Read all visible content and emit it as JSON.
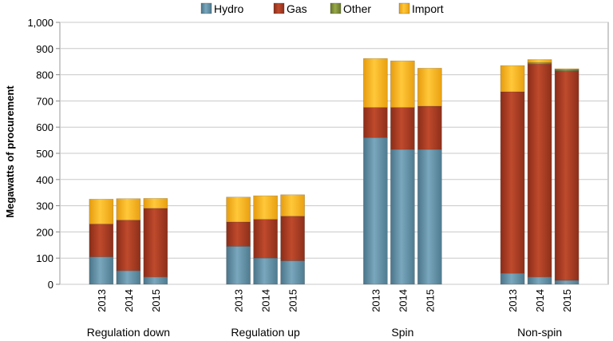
{
  "chart_data": {
    "type": "bar",
    "stacked": true,
    "ylabel": "Megawatts of procurement",
    "ylim": [
      0,
      1000
    ],
    "yticks": [
      "0",
      "100",
      "200",
      "300",
      "400",
      "500",
      "600",
      "700",
      "800",
      "900",
      "1,000"
    ],
    "grid": true,
    "legend_position": "top",
    "groups": [
      {
        "name": "Regulation down",
        "years": [
          "2013",
          "2014",
          "2015"
        ]
      },
      {
        "name": "Regulation up",
        "years": [
          "2013",
          "2014",
          "2015"
        ]
      },
      {
        "name": "Spin",
        "years": [
          "2013",
          "2014",
          "2015"
        ]
      },
      {
        "name": "Non-spin",
        "years": [
          "2013",
          "2014",
          "2015"
        ]
      }
    ],
    "series": [
      {
        "name": "Hydro",
        "color": "#5f8ea5",
        "values": [
          [
            105,
            52,
            28
          ],
          [
            145,
            100,
            90
          ],
          [
            560,
            515,
            515
          ],
          [
            42,
            28,
            15
          ]
        ]
      },
      {
        "name": "Gas",
        "color": "#a33a22",
        "values": [
          [
            125,
            193,
            262
          ],
          [
            93,
            148,
            170
          ],
          [
            115,
            160,
            165
          ],
          [
            693,
            813,
            800
          ]
        ]
      },
      {
        "name": "Other",
        "color": "#7f8f3a",
        "values": [
          [
            0,
            0,
            0
          ],
          [
            0,
            0,
            0
          ],
          [
            0,
            0,
            0
          ],
          [
            0,
            5,
            5
          ]
        ]
      },
      {
        "name": "Import",
        "color": "#f7b21c",
        "values": [
          [
            95,
            82,
            38
          ],
          [
            95,
            90,
            82
          ],
          [
            187,
            178,
            145
          ],
          [
            100,
            12,
            3
          ]
        ]
      }
    ]
  }
}
